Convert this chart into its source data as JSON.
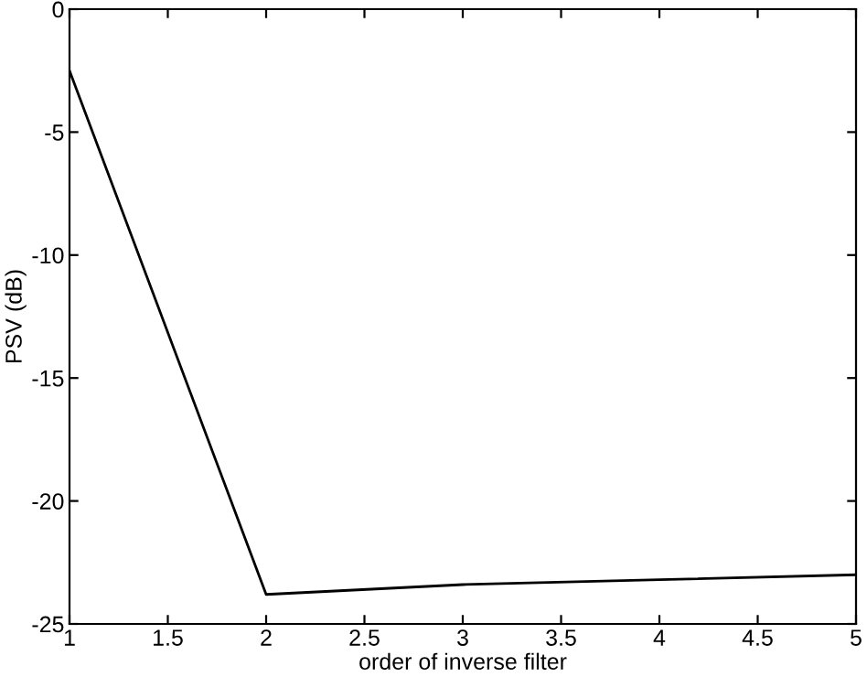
{
  "chart_data": {
    "type": "line",
    "xlabel": "order of inverse filter",
    "ylabel": "PSV (dB)",
    "x": [
      1,
      2,
      3,
      4,
      5
    ],
    "series": [
      {
        "color": "#000000",
        "values": [
          -2.5,
          -23.8,
          -23.4,
          -23.2,
          -23.0
        ]
      }
    ],
    "xlim": [
      1,
      5
    ],
    "xticks": [
      1,
      1.5,
      2,
      2.5,
      3,
      3.5,
      4,
      4.5,
      5
    ],
    "ylim": [
      -25,
      0
    ],
    "yticks": [
      -25,
      -20,
      -15,
      -10,
      -5,
      0
    ],
    "grid": false,
    "legend": false,
    "marker": "none",
    "line_style": "solid"
  }
}
